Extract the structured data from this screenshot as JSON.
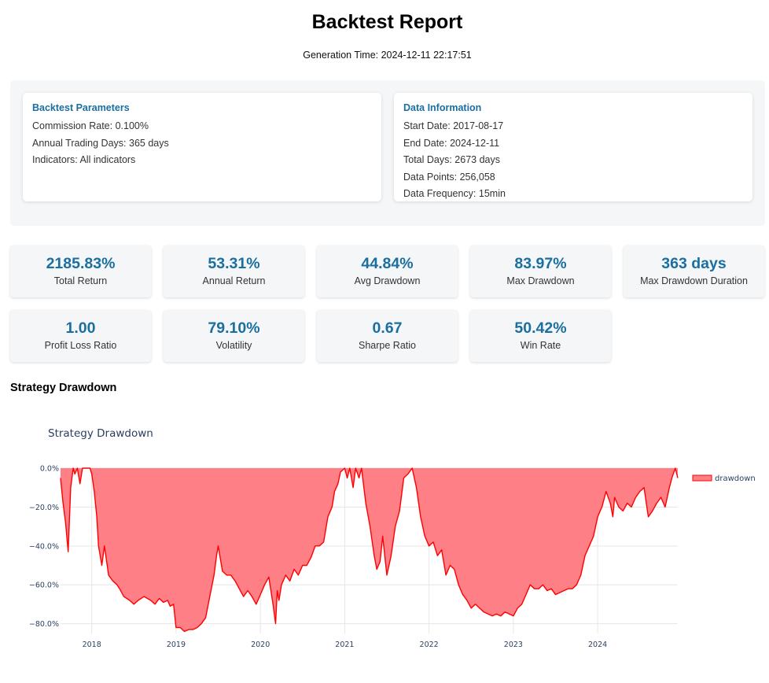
{
  "report": {
    "title": "Backtest Report",
    "generation_time": "Generation Time: 2024-12-11 22:17:51"
  },
  "backtest_parameters": {
    "heading": "Backtest Parameters",
    "rows": [
      "Commission Rate: 0.100%",
      "Annual Trading Days: 365 days",
      "Indicators: All indicators"
    ]
  },
  "data_information": {
    "heading": "Data Information",
    "rows": [
      "Start Date: 2017-08-17",
      "End Date: 2024-12-11",
      "Total Days: 2673 days",
      "Data Points: 256,058",
      "Data Frequency: 15min"
    ]
  },
  "metrics": [
    {
      "value": "2185.83%",
      "label": "Total Return"
    },
    {
      "value": "53.31%",
      "label": "Annual Return"
    },
    {
      "value": "44.84%",
      "label": "Avg Drawdown"
    },
    {
      "value": "83.97%",
      "label": "Max Drawdown"
    },
    {
      "value": "363 days",
      "label": "Max Drawdown Duration"
    },
    {
      "value": "1.00",
      "label": "Profit Loss Ratio"
    },
    {
      "value": "79.10%",
      "label": "Volatility"
    },
    {
      "value": "0.67",
      "label": "Sharpe Ratio"
    },
    {
      "value": "50.42%",
      "label": "Win Rate"
    }
  ],
  "section_title": "Strategy Drawdown",
  "chart_data": {
    "type": "area",
    "title": "Strategy Drawdown",
    "xlabel": "",
    "ylabel": "",
    "x_range": [
      2017.63,
      2024.95
    ],
    "ylim": [
      -85,
      0
    ],
    "y_ticks": [
      0,
      -20,
      -40,
      -60,
      -80
    ],
    "y_tick_labels": [
      "0.0%",
      "−20.0%",
      "−40.0%",
      "−60.0%",
      "−80.0%"
    ],
    "x_ticks": [
      2018,
      2019,
      2020,
      2021,
      2022,
      2023,
      2024
    ],
    "x_tick_labels": [
      "2018",
      "2019",
      "2020",
      "2021",
      "2022",
      "2023",
      "2024"
    ],
    "grid": true,
    "legend": "top-right",
    "series": [
      {
        "name": "drawdown",
        "color": "#ff0000",
        "fill": "#ff7f86",
        "x": [
          2017.63,
          2017.66,
          2017.69,
          2017.72,
          2017.75,
          2017.78,
          2017.8,
          2017.83,
          2017.86,
          2017.89,
          2017.92,
          2017.95,
          2017.98,
          2018.0,
          2018.03,
          2018.06,
          2018.08,
          2018.12,
          2018.15,
          2018.2,
          2018.25,
          2018.3,
          2018.33,
          2018.38,
          2018.45,
          2018.5,
          2018.55,
          2018.62,
          2018.7,
          2018.75,
          2018.8,
          2018.85,
          2018.9,
          2018.93,
          2018.97,
          2019.0,
          2019.05,
          2019.1,
          2019.15,
          2019.2,
          2019.25,
          2019.3,
          2019.35,
          2019.4,
          2019.45,
          2019.48,
          2019.5,
          2019.55,
          2019.6,
          2019.65,
          2019.7,
          2019.75,
          2019.8,
          2019.85,
          2019.9,
          2019.95,
          2020.0,
          2020.05,
          2020.1,
          2020.15,
          2020.18,
          2020.2,
          2020.22,
          2020.25,
          2020.3,
          2020.35,
          2020.4,
          2020.45,
          2020.5,
          2020.55,
          2020.6,
          2020.65,
          2020.7,
          2020.75,
          2020.8,
          2020.85,
          2020.88,
          2020.92,
          2020.95,
          2021.0,
          2021.03,
          2021.06,
          2021.1,
          2021.13,
          2021.17,
          2021.2,
          2021.25,
          2021.3,
          2021.35,
          2021.38,
          2021.42,
          2021.45,
          2021.5,
          2021.55,
          2021.6,
          2021.65,
          2021.7,
          2021.75,
          2021.8,
          2021.85,
          2021.9,
          2021.95,
          2022.0,
          2022.05,
          2022.1,
          2022.15,
          2022.2,
          2022.25,
          2022.3,
          2022.35,
          2022.4,
          2022.45,
          2022.5,
          2022.55,
          2022.6,
          2022.65,
          2022.7,
          2022.75,
          2022.8,
          2022.85,
          2022.9,
          2022.95,
          2023.0,
          2023.05,
          2023.1,
          2023.15,
          2023.2,
          2023.25,
          2023.3,
          2023.35,
          2023.4,
          2023.45,
          2023.5,
          2023.55,
          2023.6,
          2023.65,
          2023.7,
          2023.75,
          2023.8,
          2023.85,
          2023.9,
          2023.95,
          2024.0,
          2024.05,
          2024.1,
          2024.15,
          2024.18,
          2024.2,
          2024.25,
          2024.3,
          2024.35,
          2024.4,
          2024.45,
          2024.5,
          2024.55,
          2024.6,
          2024.65,
          2024.7,
          2024.75,
          2024.8,
          2024.85,
          2024.88,
          2024.92,
          2024.95
        ],
        "y": [
          -5,
          -18,
          -28,
          -43,
          -10,
          0,
          -3,
          0,
          -8,
          0,
          0,
          0,
          0,
          -3,
          -12,
          -25,
          -40,
          -50,
          -40,
          -55,
          -58,
          -60,
          -62,
          -66,
          -68,
          -70,
          -68,
          -66,
          -68,
          -70,
          -67,
          -69,
          -68,
          -71,
          -70,
          -82,
          -82,
          -84,
          -83,
          -83,
          -82,
          -80,
          -77,
          -66,
          -55,
          -45,
          -40,
          -53,
          -55,
          -55,
          -58,
          -62,
          -66,
          -63,
          -66,
          -70,
          -65,
          -60,
          -56,
          -70,
          -80,
          -63,
          -68,
          -60,
          -55,
          -58,
          -52,
          -55,
          -50,
          -50,
          -46,
          -40,
          -40,
          -38,
          -25,
          -20,
          -12,
          -8,
          -2,
          0,
          -5,
          0,
          -10,
          0,
          -5,
          0,
          -18,
          -30,
          -45,
          -52,
          -48,
          -35,
          -55,
          -45,
          -30,
          -22,
          -5,
          -3,
          0,
          -10,
          -25,
          -35,
          -40,
          -38,
          -45,
          -42,
          -55,
          -50,
          -52,
          -60,
          -65,
          -68,
          -72,
          -70,
          -72,
          -74,
          -75,
          -76,
          -75,
          -76,
          -74,
          -75,
          -76,
          -72,
          -70,
          -65,
          -60,
          -62,
          -62,
          -60,
          -63,
          -62,
          -65,
          -64,
          -63,
          -62,
          -62,
          -60,
          -55,
          -45,
          -40,
          -35,
          -25,
          -20,
          -12,
          -18,
          -25,
          -15,
          -20,
          -22,
          -18,
          -20,
          -15,
          -12,
          -10,
          -25,
          -22,
          -18,
          -15,
          -20,
          -10,
          -5,
          0,
          -5
        ]
      }
    ]
  }
}
